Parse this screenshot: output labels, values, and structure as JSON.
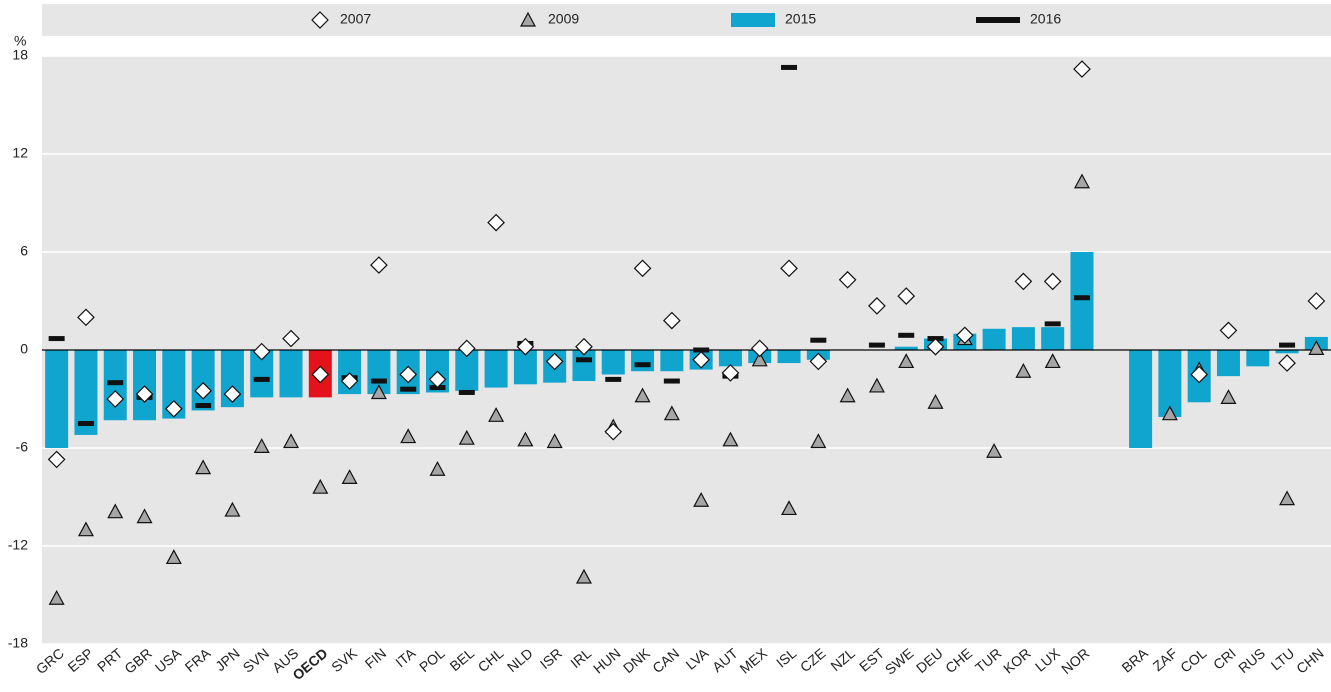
{
  "chart_data": {
    "type": "bar",
    "y_label": "%",
    "categories": [
      "GRC",
      "ESP",
      "PRT",
      "GBR",
      "USA",
      "FRA",
      "JPN",
      "SVN",
      "AUS",
      "OECD",
      "SVK",
      "FIN",
      "ITA",
      "POL",
      "BEL",
      "CHL",
      "NLD",
      "ISR",
      "IRL",
      "HUN",
      "DNK",
      "CAN",
      "LVA",
      "AUT",
      "MEX",
      "ISL",
      "CZE",
      "NZL",
      "EST",
      "SWE",
      "DEU",
      "CHE",
      "TUR",
      "KOR",
      "LUX",
      "NOR",
      null,
      "BRA",
      "ZAF",
      "COL",
      "CRI",
      "RUS",
      "LTU",
      "CHN"
    ],
    "highlight": "OECD",
    "highlight_color": "#e3121b",
    "series": [
      {
        "name": "2007",
        "marker": "diamond",
        "color": "#ffffff",
        "values": [
          -6.7,
          2.0,
          -3.0,
          -2.7,
          -3.6,
          -2.5,
          -2.7,
          -0.1,
          0.7,
          -1.5,
          -1.9,
          5.2,
          -1.5,
          -1.8,
          0.1,
          7.8,
          0.2,
          -0.7,
          0.2,
          -5.0,
          5.0,
          1.8,
          -0.6,
          -1.4,
          0.1,
          5.0,
          -0.7,
          4.3,
          2.7,
          3.3,
          0.2,
          0.9,
          null,
          4.2,
          4.2,
          17.2,
          null,
          null,
          null,
          -1.5,
          1.2,
          null,
          -0.8,
          3.0
        ]
      },
      {
        "name": "2009",
        "marker": "triangle",
        "color": "#a6a6a6",
        "values": [
          -15.2,
          -11.0,
          -9.9,
          -10.2,
          -12.7,
          -7.2,
          -9.8,
          -5.9,
          -5.6,
          -8.4,
          -7.8,
          -2.6,
          -5.3,
          -7.3,
          -5.4,
          -4.0,
          -5.5,
          -5.6,
          -13.9,
          -4.7,
          -2.8,
          -3.9,
          -9.2,
          -5.5,
          -0.6,
          -9.7,
          -5.6,
          -2.8,
          -2.2,
          -0.7,
          -3.2,
          0.7,
          -6.2,
          -1.3,
          -0.7,
          10.3,
          null,
          null,
          -3.9,
          -1.2,
          -2.9,
          null,
          -9.1,
          0.1
        ]
      },
      {
        "name": "2015",
        "marker": "bar",
        "color": "#10a5cf",
        "values": [
          -6.0,
          -5.2,
          -4.3,
          -4.3,
          -4.2,
          -3.7,
          -3.5,
          -2.9,
          -2.9,
          -2.9,
          -2.7,
          -2.7,
          -2.7,
          -2.6,
          -2.5,
          -2.3,
          -2.1,
          -2.0,
          -1.9,
          -1.5,
          -1.3,
          -1.3,
          -1.2,
          -1.0,
          -0.8,
          -0.8,
          -0.6,
          null,
          null,
          0.2,
          0.7,
          1.0,
          1.3,
          1.4,
          1.4,
          6.0,
          null,
          -6.0,
          -4.1,
          -3.2,
          -1.6,
          -1.0,
          -0.2,
          0.8
        ]
      },
      {
        "name": "2016",
        "marker": "dash",
        "color": "#111111",
        "values": [
          0.7,
          -4.5,
          -2.0,
          -2.9,
          null,
          -3.4,
          null,
          -1.8,
          null,
          null,
          -1.7,
          -1.9,
          -2.4,
          -2.3,
          -2.6,
          null,
          0.4,
          null,
          -0.6,
          -1.8,
          -0.9,
          -1.9,
          0.0,
          -1.6,
          null,
          17.3,
          0.6,
          null,
          0.3,
          0.9,
          0.7,
          null,
          null,
          null,
          1.6,
          3.2,
          null,
          null,
          null,
          null,
          null,
          null,
          0.3,
          null
        ]
      }
    ],
    "ylim": [
      -18,
      18
    ],
    "yticks": [
      -18,
      -12,
      -6,
      0,
      6,
      12,
      18
    ],
    "grid": true
  }
}
